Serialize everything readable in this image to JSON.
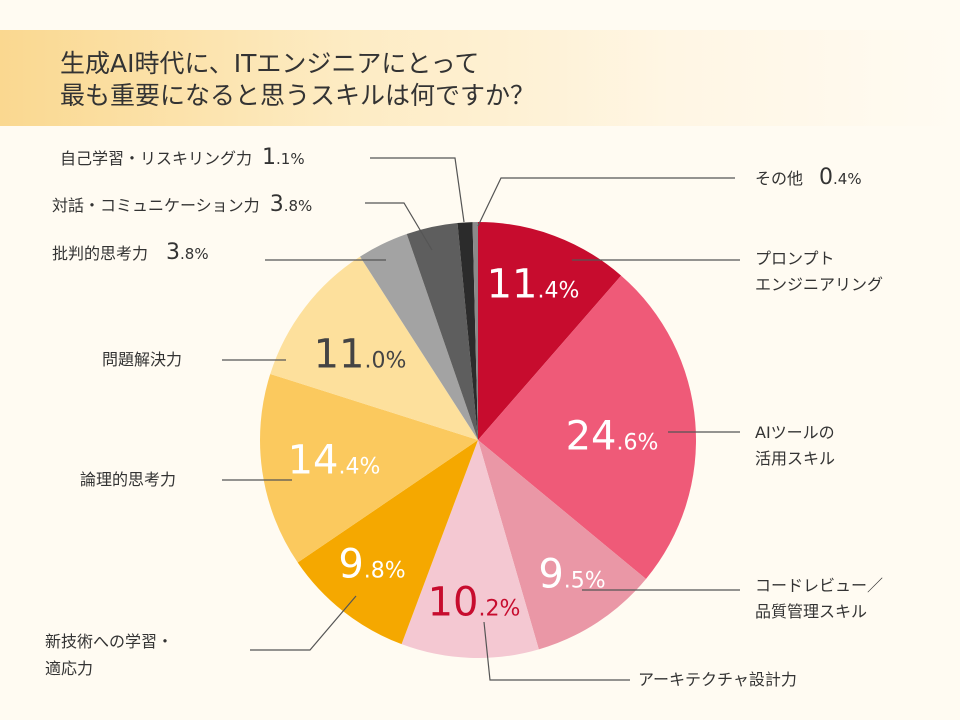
{
  "title": "生成AI時代に、ITエンジニアにとって\n最も重要になると思うスキルは何ですか？",
  "chart_data": {
    "type": "pie",
    "title": "生成AI時代に、ITエンジニアにとって最も重要になると思うスキルは何ですか？",
    "unit": "%",
    "direction": "clockwise-from-top",
    "slices": [
      {
        "label": "プロンプトエンジニアリング",
        "value": 11.4,
        "color": "#c70c2e",
        "text_color": "#ffffff"
      },
      {
        "label": "AIツールの活用スキル",
        "value": 24.6,
        "color": "#ef5a78",
        "text_color": "#ffffff"
      },
      {
        "label": "コードレビュー／品質管理スキル",
        "value": 9.5,
        "color": "#ea97a6",
        "text_color": "#ffffff"
      },
      {
        "label": "アーキテクチャ設計力",
        "value": 10.2,
        "color": "#f4c8d2",
        "text_color": "#c70c2e"
      },
      {
        "label": "新技術への学習・適応力",
        "value": 9.8,
        "color": "#f5a800",
        "text_color": "#ffffff"
      },
      {
        "label": "論理的思考力",
        "value": 14.4,
        "color": "#fbc95e",
        "text_color": "#ffffff"
      },
      {
        "label": "問題解決力",
        "value": 11.0,
        "color": "#fde09c",
        "text_color": "#444444"
      },
      {
        "label": "批判的思考力",
        "value": 3.8,
        "color": "#a3a3a3",
        "text_color": null
      },
      {
        "label": "対話・コミュニケーション力",
        "value": 3.8,
        "color": "#5e5e5e",
        "text_color": null
      },
      {
        "label": "自己学習・リスキリング力",
        "value": 1.1,
        "color": "#2b2b2b",
        "text_color": null
      },
      {
        "label": "その他",
        "value": 0.4,
        "color": "#8a8a8a",
        "text_color": null
      }
    ]
  },
  "outside_labels": {
    "prompt": "プロンプト\nエンジニアリング",
    "ai_tools": "AIツールの\n活用スキル",
    "review": "コードレビュー／\n品質管理スキル",
    "architecture": "アーキテクチャ設計力",
    "learning": "新技術への学習・\n適応力",
    "logical": "論理的思考力",
    "problem": "問題解決力",
    "critical": "批判的思考力",
    "communication": "対話・コミュニケーション力",
    "self_learning": "自己学習・リスキリング力",
    "other": "その他"
  }
}
